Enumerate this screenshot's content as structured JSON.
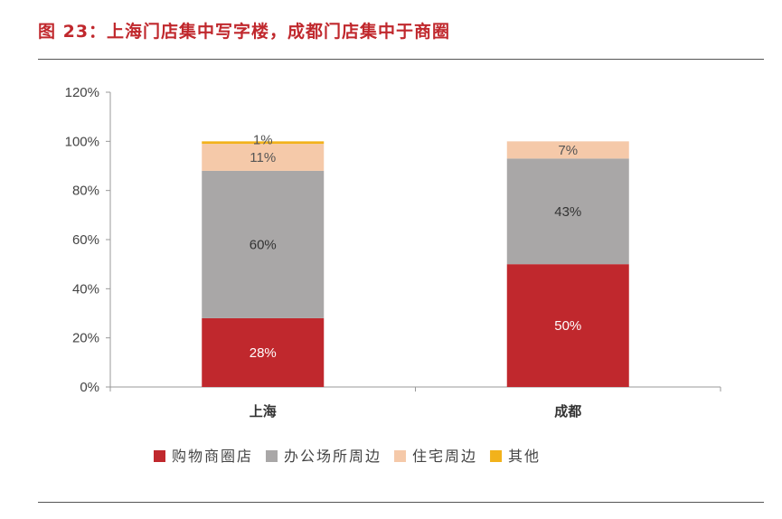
{
  "title": "图 23：上海门店集中写字楼，成都门店集中于商圈",
  "chart_data": {
    "type": "bar",
    "stacked": true,
    "categories": [
      "上海",
      "成都"
    ],
    "series": [
      {
        "name": "购物商圈店",
        "color": "#c0282d",
        "values": [
          28,
          50
        ],
        "labels": [
          "28%",
          "50%"
        ],
        "label_color": "#ffffff"
      },
      {
        "name": "办公场所周边",
        "color": "#a9a7a7",
        "values": [
          60,
          43
        ],
        "labels": [
          "60%",
          "43%"
        ],
        "label_color": "#333333"
      },
      {
        "name": "住宅周边",
        "color": "#f5c9a9",
        "values": [
          11,
          7
        ],
        "labels": [
          "11%",
          "7%"
        ],
        "label_color": "#555555"
      },
      {
        "name": "其他",
        "color": "#f2b21b",
        "values": [
          1,
          0
        ],
        "labels": [
          "1%",
          ""
        ],
        "label_color": "#555555"
      }
    ],
    "ylim": [
      0,
      120
    ],
    "yticks": [
      "0%",
      "20%",
      "40%",
      "60%",
      "80%",
      "100%",
      "120%"
    ],
    "grid": false,
    "legend": "bottom"
  }
}
